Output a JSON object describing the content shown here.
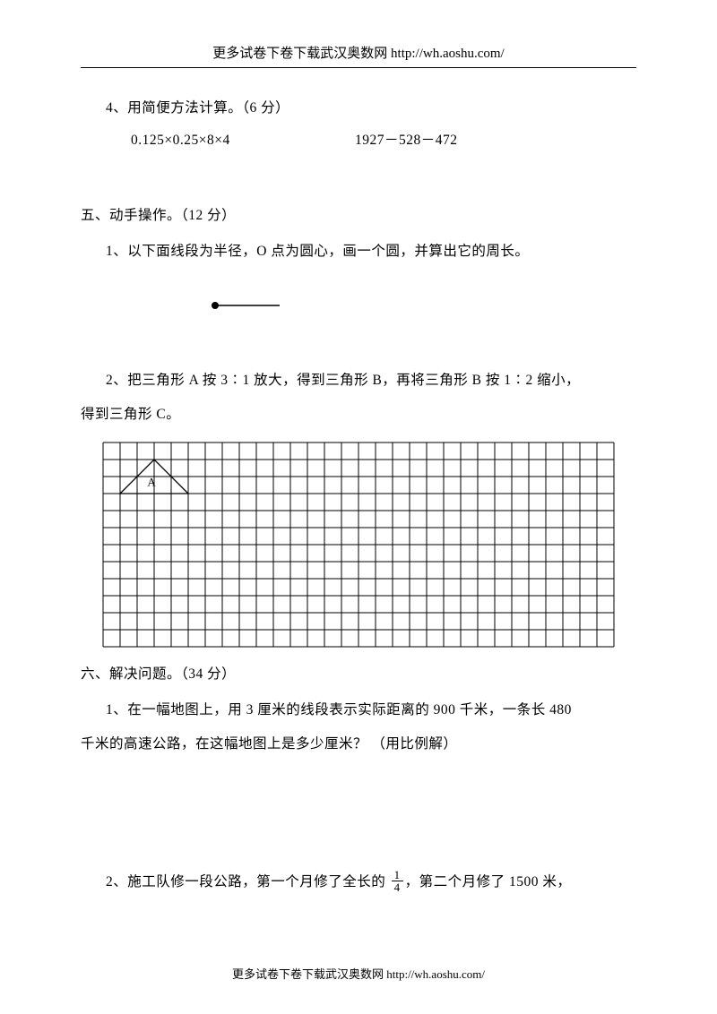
{
  "header": {
    "text": "更多试卷下卷下载武汉奥数网 http://wh.aoshu.com/"
  },
  "footer": {
    "text": "更多试卷下卷下载武汉奥数网 http://wh.aoshu.com/"
  },
  "q4": {
    "title": "4、用简便方法计算。（6 分）",
    "expr1": "0.125×0.25×8×4",
    "expr2": "1927－528－472"
  },
  "section5": {
    "title": "五、动手操作。（12 分）",
    "q1": "1、以下面线段为半径，O 点为圆心，画一个圆，并算出它的周长。",
    "q2a": "2、把三角形 A 按 3∶1 放大，得到三角形 B，再将三角形 B 按 1∶2 缩小，",
    "q2b": "得到三角形 C。"
  },
  "radius": {
    "dot_r": 4,
    "line_length": 72,
    "stroke": "#000000"
  },
  "grid": {
    "cols": 30,
    "rows": 12,
    "cell": 19,
    "stroke": "#000000",
    "stroke_width": 1,
    "triangle": {
      "label": "A",
      "base_col_start": 1,
      "base_col_end": 5,
      "apex_col": 3,
      "base_row": 3,
      "apex_row": 1,
      "label_x_cell": 2.6,
      "label_y_cell": 2.55,
      "label_fontsize": 13
    }
  },
  "section6": {
    "title": "六、解决问题。（34 分）",
    "q1a": "1、在一幅地图上，用 3 厘米的线段表示实际距离的 900 千米，一条长 480",
    "q1b": "千米的高速公路，在这幅地图上是多少厘米？ （用比例解）",
    "q2_pre": "2、施工队修一段公路，第一个月修了全长的 ",
    "q2_frac_n": "1",
    "q2_frac_d": "4",
    "q2_post": "，第二个月修了 1500 米，"
  },
  "colors": {
    "text": "#000000",
    "bg": "#ffffff"
  }
}
